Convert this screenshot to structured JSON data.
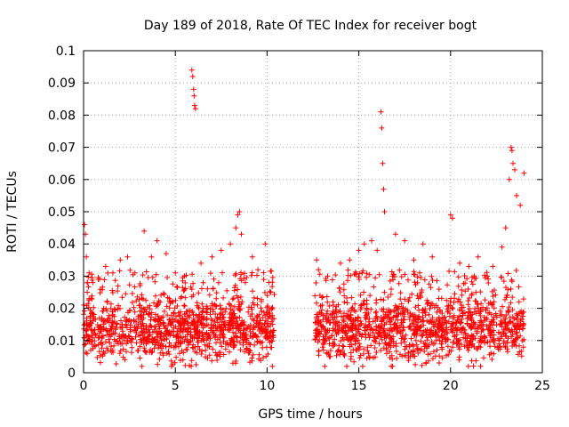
{
  "chart_data": {
    "type": "scatter",
    "title": "Day 189 of 2018, Rate Of TEC Index for receiver bogt",
    "xlabel": "GPS time / hours",
    "ylabel": "ROTI / TECUs",
    "xlim": [
      0,
      25
    ],
    "ylim": [
      0,
      0.1
    ],
    "x_ticks": [
      0,
      5,
      10,
      15,
      20,
      25
    ],
    "x_tick_labels": [
      "0",
      "5",
      "10",
      "15",
      "20",
      "25"
    ],
    "y_ticks": [
      0,
      0.01,
      0.02,
      0.03,
      0.04,
      0.05,
      0.06,
      0.07,
      0.08,
      0.09,
      0.1
    ],
    "y_tick_labels": [
      "0",
      "0.01",
      "0.02",
      "0.03",
      "0.04",
      "0.05",
      "0.06",
      "0.07",
      "0.08",
      "0.09",
      "0.1"
    ],
    "grid": true,
    "marker": "+",
    "color": "#ff0000",
    "data_gaps_hours": [
      [
        10.4,
        12.6
      ]
    ],
    "series": [
      {
        "name": "ROTI",
        "x": [
          0.05,
          0.1,
          0.15,
          0.2,
          0.3,
          0.5,
          0.8,
          1.2,
          1.6,
          2.0,
          2.4,
          2.8,
          3.3,
          3.7,
          4.0,
          4.5,
          5.0,
          5.5,
          5.9,
          5.95,
          6.0,
          6.02,
          6.05,
          6.1,
          6.4,
          7.0,
          7.5,
          8.0,
          8.3,
          8.4,
          8.5,
          8.6,
          9.2,
          9.5,
          9.9,
          10.2,
          12.7,
          12.8,
          13.3,
          14.0,
          14.5,
          15.0,
          15.3,
          15.7,
          16.0,
          16.2,
          16.25,
          16.3,
          16.35,
          16.4,
          17.0,
          17.5,
          18.0,
          18.5,
          19.0,
          20.0,
          20.1,
          20.5,
          21.0,
          21.5,
          22.0,
          22.3,
          22.8,
          23.0,
          23.2,
          23.3,
          23.35,
          23.4,
          23.5,
          23.6,
          23.8,
          24.0
        ],
        "y": [
          0.046,
          0.043,
          0.036,
          0.025,
          0.031,
          0.028,
          0.029,
          0.033,
          0.031,
          0.035,
          0.036,
          0.031,
          0.044,
          0.036,
          0.041,
          0.037,
          0.031,
          0.03,
          0.094,
          0.092,
          0.088,
          0.086,
          0.083,
          0.082,
          0.034,
          0.036,
          0.038,
          0.04,
          0.045,
          0.049,
          0.05,
          0.043,
          0.036,
          0.032,
          0.04,
          0.025,
          0.035,
          0.032,
          0.03,
          0.034,
          0.035,
          0.038,
          0.04,
          0.041,
          0.038,
          0.081,
          0.076,
          0.065,
          0.057,
          0.05,
          0.043,
          0.041,
          0.035,
          0.04,
          0.036,
          0.049,
          0.048,
          0.034,
          0.033,
          0.036,
          0.03,
          0.033,
          0.039,
          0.045,
          0.06,
          0.07,
          0.069,
          0.065,
          0.063,
          0.055,
          0.052,
          0.062
        ]
      }
    ],
    "dense_band": {
      "x_ranges": [
        [
          0,
          10.4
        ],
        [
          12.6,
          24.0
        ]
      ],
      "y_center": 0.013,
      "y_min": 0.002,
      "y_max": 0.03,
      "points_per_hour": 110
    }
  }
}
